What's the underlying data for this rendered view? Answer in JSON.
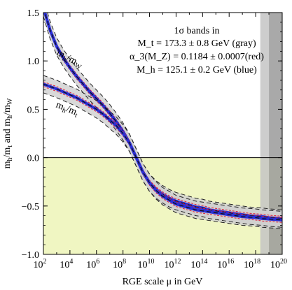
{
  "chart_data": {
    "type": "line",
    "xlabel": "RGE scale μ in GeV",
    "ylabel": "m_h/m_t and m_h/m_W",
    "x_scale": "log",
    "xlim": [
      100,
      1e+20
    ],
    "ylim": [
      -1.0,
      1.5
    ],
    "x_ticks": [
      {
        "value": 100.0,
        "base": "10",
        "exp": "2"
      },
      {
        "value": 10000.0,
        "base": "10",
        "exp": "4"
      },
      {
        "value": 1000000.0,
        "base": "10",
        "exp": "6"
      },
      {
        "value": 100000000.0,
        "base": "10",
        "exp": "8"
      },
      {
        "value": 10000000000.0,
        "base": "10",
        "exp": "10"
      },
      {
        "value": 1000000000000.0,
        "base": "10",
        "exp": "12"
      },
      {
        "value": 100000000000000.0,
        "base": "10",
        "exp": "14"
      },
      {
        "value": 1e+16,
        "base": "10",
        "exp": "16"
      },
      {
        "value": 1e+18,
        "base": "10",
        "exp": "18"
      },
      {
        "value": 1e+20,
        "base": "10",
        "exp": "20"
      }
    ],
    "y_ticks": [
      {
        "value": 1.5,
        "label": "1.5"
      },
      {
        "value": 1.0,
        "label": "1.0"
      },
      {
        "value": 0.5,
        "label": "0.5"
      },
      {
        "value": 0.0,
        "label": "0.0"
      },
      {
        "value": -0.5,
        "label": "−0.5"
      },
      {
        "value": -1.0,
        "label": "−1.0"
      }
    ],
    "legend_box": {
      "title": "1σ bands in",
      "lines": [
        "M_t = 173.3 ± 0.8 GeV (gray)",
        "α_3(M_Z) = 0.1184 ± 0.0007(red)",
        "M_h = 125.1 ± 0.2 GeV (blue)"
      ]
    },
    "curve_labels": [
      {
        "num": "m",
        "num_sub": "h",
        "den": "m",
        "den_sub": "W"
      },
      {
        "num": "m",
        "num_sub": "h",
        "den": "m",
        "den_sub": "t"
      }
    ],
    "shaded_regions": [
      {
        "name": "negative region",
        "y_from": -1.0,
        "y_to": 0.0,
        "color": "#f0f6c2"
      },
      {
        "name": "gray band",
        "x_from_log10": 18.35,
        "x_to_log10": 19.0,
        "color": "#c4c4c4"
      },
      {
        "name": "dark band",
        "x_from_log10": 19.0,
        "x_to_log10": 20.0,
        "color": "#9a9a9a"
      }
    ],
    "series": [
      {
        "log10_mu": [
          2,
          2.5,
          3,
          3.5,
          4,
          4.5,
          5,
          5.5,
          6,
          6.5,
          7,
          7.5,
          8,
          8.5,
          9,
          9.5,
          10,
          10.5,
          11,
          11.5,
          12,
          12.5,
          13,
          13.5,
          14,
          14.5,
          15,
          15.5,
          16,
          16.5,
          17,
          17.5,
          18,
          18.5,
          19,
          19.5,
          20
        ],
        "values": [
          1.55,
          1.32,
          1.15,
          1.03,
          0.93,
          0.84,
          0.76,
          0.68,
          0.61,
          0.54,
          0.46,
          0.37,
          0.27,
          0.15,
          0.0,
          -0.15,
          -0.26,
          -0.33,
          -0.38,
          -0.42,
          -0.45,
          -0.47,
          -0.49,
          -0.51,
          -0.52,
          -0.54,
          -0.55,
          -0.56,
          -0.57,
          -0.58,
          -0.59,
          -0.6,
          -0.605,
          -0.61,
          -0.62,
          -0.625,
          -0.63
        ],
        "gray_halfwidth": 0.09,
        "red_halfwidth": 0.025,
        "blue_halfwidth": 0.01
      },
      {
        "log10_mu": [
          2,
          2.5,
          3,
          3.5,
          4,
          4.5,
          5,
          5.5,
          6,
          6.5,
          7,
          7.5,
          8,
          8.5,
          9,
          9.5,
          10,
          10.5,
          11,
          11.5,
          12,
          12.5,
          13,
          13.5,
          14,
          14.5,
          15,
          15.5,
          16,
          16.5,
          17,
          17.5,
          18,
          18.5,
          19,
          19.5,
          20
        ],
        "values": [
          0.76,
          0.735,
          0.71,
          0.68,
          0.65,
          0.62,
          0.58,
          0.54,
          0.5,
          0.45,
          0.39,
          0.33,
          0.25,
          0.15,
          0.0,
          -0.15,
          -0.26,
          -0.34,
          -0.4,
          -0.44,
          -0.48,
          -0.5,
          -0.52,
          -0.54,
          -0.55,
          -0.56,
          -0.57,
          -0.58,
          -0.59,
          -0.6,
          -0.61,
          -0.615,
          -0.62,
          -0.63,
          -0.635,
          -0.64,
          -0.645
        ],
        "gray_halfwidth": 0.09,
        "red_halfwidth": 0.025,
        "blue_halfwidth": 0.01
      }
    ]
  }
}
